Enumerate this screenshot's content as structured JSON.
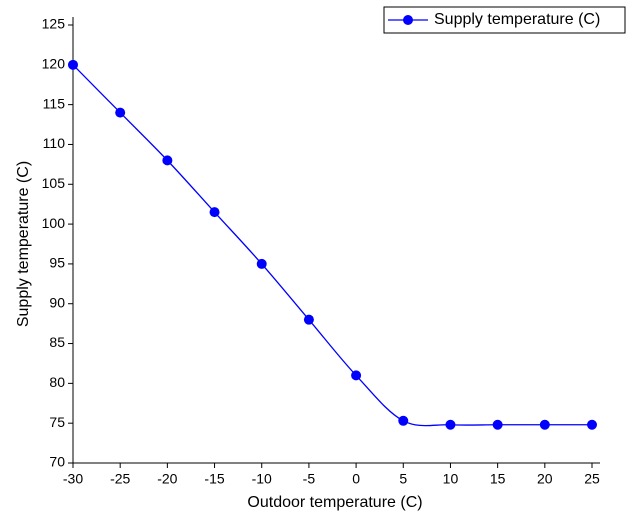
{
  "chart_data": {
    "type": "line",
    "x_label": "Outdoor temperature (C)",
    "y_label": "Supply temperature (C)",
    "x": [
      -30,
      -25,
      -20,
      -15,
      -10,
      -5,
      0,
      5,
      10,
      15,
      20,
      25
    ],
    "series": [
      {
        "name": "Supply temperature (C)",
        "color": "#0000ff",
        "values": [
          120,
          114,
          108,
          101.5,
          95,
          88,
          81,
          75.3,
          74.8,
          74.8,
          74.8,
          74.8
        ]
      }
    ],
    "xlim": [
      -30,
      25
    ],
    "xticks": [
      -30,
      -25,
      -20,
      -15,
      -10,
      -5,
      0,
      5,
      10,
      15,
      20,
      25
    ],
    "ylim": [
      70,
      125
    ],
    "yticks": [
      70,
      75,
      80,
      85,
      90,
      95,
      100,
      105,
      110,
      115,
      120,
      125
    ],
    "legend": "top-right",
    "smooth": true
  }
}
